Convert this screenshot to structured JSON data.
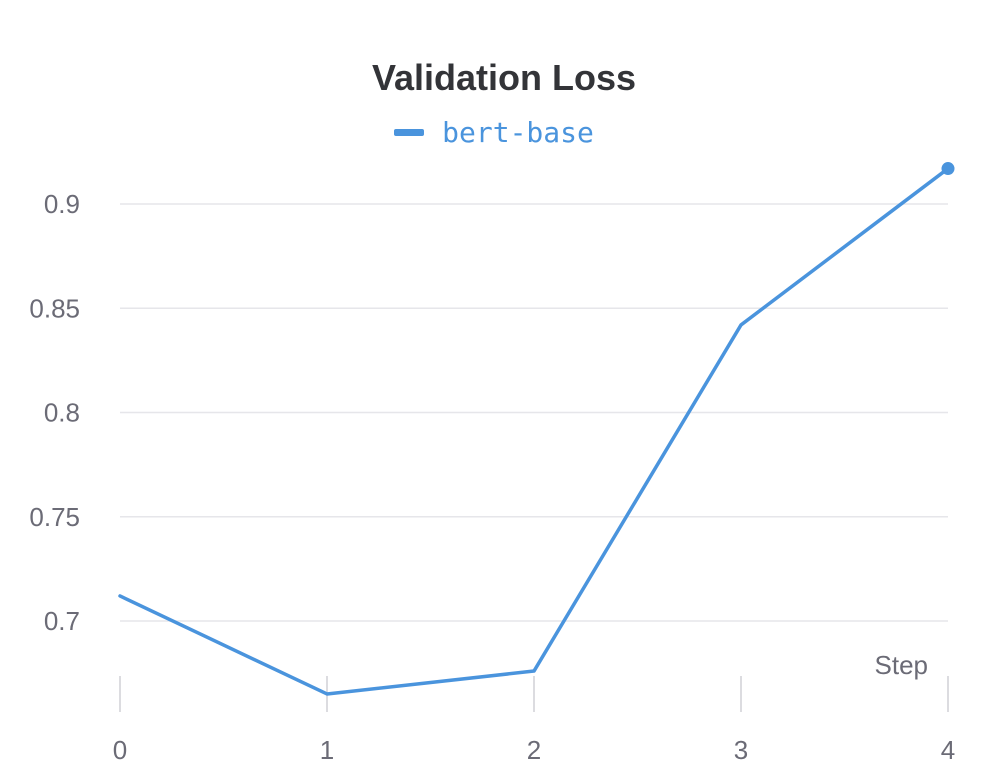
{
  "chart_data": {
    "type": "line",
    "title": "Validation Loss",
    "xlabel": "Step",
    "ylabel": "",
    "x": [
      0,
      1,
      2,
      3,
      4
    ],
    "xticks": [
      "0",
      "1",
      "2",
      "3",
      "4"
    ],
    "yticks": [
      "0.7",
      "0.75",
      "0.8",
      "0.85",
      "0.9"
    ],
    "ylim": [
      0.665,
      0.925
    ],
    "xlim": [
      0,
      4
    ],
    "grid": true,
    "legend_position": "top-center",
    "series": [
      {
        "name": "bert-base",
        "values": [
          0.712,
          0.665,
          0.676,
          0.842,
          0.917
        ],
        "color": "#4a94dd"
      }
    ]
  }
}
